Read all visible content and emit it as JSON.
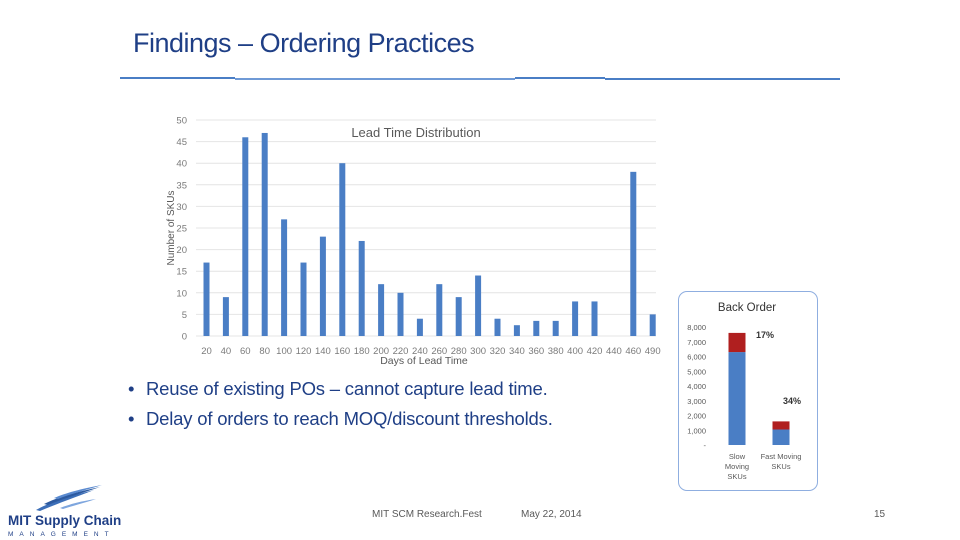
{
  "slide": {
    "title": "Findings – Ordering Practices",
    "bullets": [
      "Reuse of existing POs – cannot capture lead time.",
      "Delay of orders to reach MOQ/discount thresholds."
    ]
  },
  "footer": {
    "event": "MIT SCM Research.Fest",
    "date": "May 22, 2014",
    "page": "15"
  },
  "logo": {
    "name": "MIT Supply Chain",
    "subtitle": "MANAGEMENT"
  },
  "colors": {
    "title": "#1f3f86",
    "bar": "#4a7ec5",
    "bar_dark_red": "#b01f1f",
    "rule": "#4a7ec5",
    "text_gray": "#595959"
  },
  "chart_data": [
    {
      "type": "bar",
      "title": "Lead Time Distribution",
      "xlabel": "Days of Lead Time",
      "ylabel": "Number of SKUs",
      "ylim": [
        0,
        50
      ],
      "yticks": [
        0,
        5,
        10,
        15,
        20,
        25,
        30,
        35,
        40,
        45,
        50
      ],
      "grid": true,
      "categories": [
        "20",
        "40",
        "60",
        "80",
        "100",
        "120",
        "140",
        "160",
        "180",
        "200",
        "220",
        "240",
        "260",
        "280",
        "300",
        "320",
        "340",
        "360",
        "380",
        "400",
        "420",
        "440",
        "460",
        "490"
      ],
      "values": [
        17,
        9,
        46,
        47,
        27,
        17,
        23,
        40,
        22,
        12,
        10,
        4,
        12,
        9,
        14,
        4,
        2.5,
        3.5,
        3.5,
        8,
        8,
        0,
        38,
        5
      ]
    },
    {
      "type": "bar",
      "title": "Back Order",
      "categories": [
        "Slow Moving SKUs",
        "Fast Moving SKUs"
      ],
      "yticks": [
        "-",
        "1,000",
        "2,000",
        "3,000",
        "4,000",
        "5,000",
        "6,000",
        "7,000",
        "8,000"
      ],
      "ylim": [
        0,
        8000
      ],
      "series": [
        {
          "values": [
            6300,
            1050
          ]
        },
        {
          "values": [
            1300,
            550
          ]
        }
      ],
      "annotations": [
        "17%",
        "34%"
      ]
    }
  ]
}
